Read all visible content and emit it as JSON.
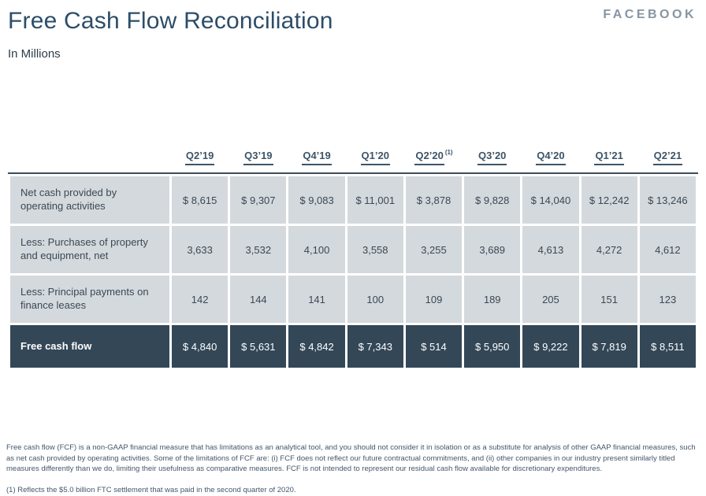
{
  "page": {
    "title": "Free Cash Flow Reconciliation",
    "subtitle": "In Millions",
    "brand": "FACEBOOK"
  },
  "colors": {
    "title_text": "#2d4d68",
    "brand_text": "#8795a3",
    "header_text": "#3d5468",
    "cell_background": "#d4d9dd",
    "cell_text": "#3b4854",
    "total_row_background": "#334757",
    "total_row_text": "#ffffff",
    "top_rule": "#3b4c5a",
    "footnote_text": "#44576b"
  },
  "table": {
    "columns": [
      "Q2’19",
      "Q3’19",
      "Q4’19",
      "Q1’20",
      "Q2’20",
      "Q3’20",
      "Q4’20",
      "Q1’21",
      "Q2’21"
    ],
    "footnote_marker": "(1)",
    "rows": [
      {
        "label": "Net cash provided by operating activities",
        "values": [
          "$ 8,615",
          "$ 9,307",
          "$ 9,083",
          "$ 11,001",
          "$ 3,878",
          "$ 9,828",
          "$ 14,040",
          "$ 12,242",
          "$ 13,246"
        ]
      },
      {
        "label": "Less: Purchases of property and equipment, net",
        "values": [
          "3,633",
          "3,532",
          "4,100",
          "3,558",
          "3,255",
          "3,689",
          "4,613",
          "4,272",
          "4,612"
        ]
      },
      {
        "label": "Less: Principal payments on finance leases",
        "values": [
          "142",
          "144",
          "141",
          "100",
          "109",
          "189",
          "205",
          "151",
          "123"
        ]
      },
      {
        "label": "Free cash flow",
        "values": [
          "$ 4,840",
          "$ 5,631",
          "$ 4,842",
          "$ 7,343",
          "$ 514",
          "$ 5,950",
          "$ 9,222",
          "$ 7,819",
          "$ 8,511"
        ]
      }
    ]
  },
  "footnotes": {
    "disclaimer": "Free cash flow (FCF) is a non-GAAP financial measure that has limitations as an analytical tool, and you should not consider it in isolation or as a substitute for analysis of other GAAP financial measures, such as net cash provided by operating activities. Some of the limitations of FCF are: (i) FCF does not reflect our future contractual commitments, and (ii) other companies in our industry present similarly titled measures differently than we do, limiting their usefulness as comparative measures. FCF is not intended to represent our residual cash flow available for discretionary expenditures.",
    "note1": "(1) Reflects the $5.0 billion FTC settlement that was paid in the second quarter of 2020."
  }
}
